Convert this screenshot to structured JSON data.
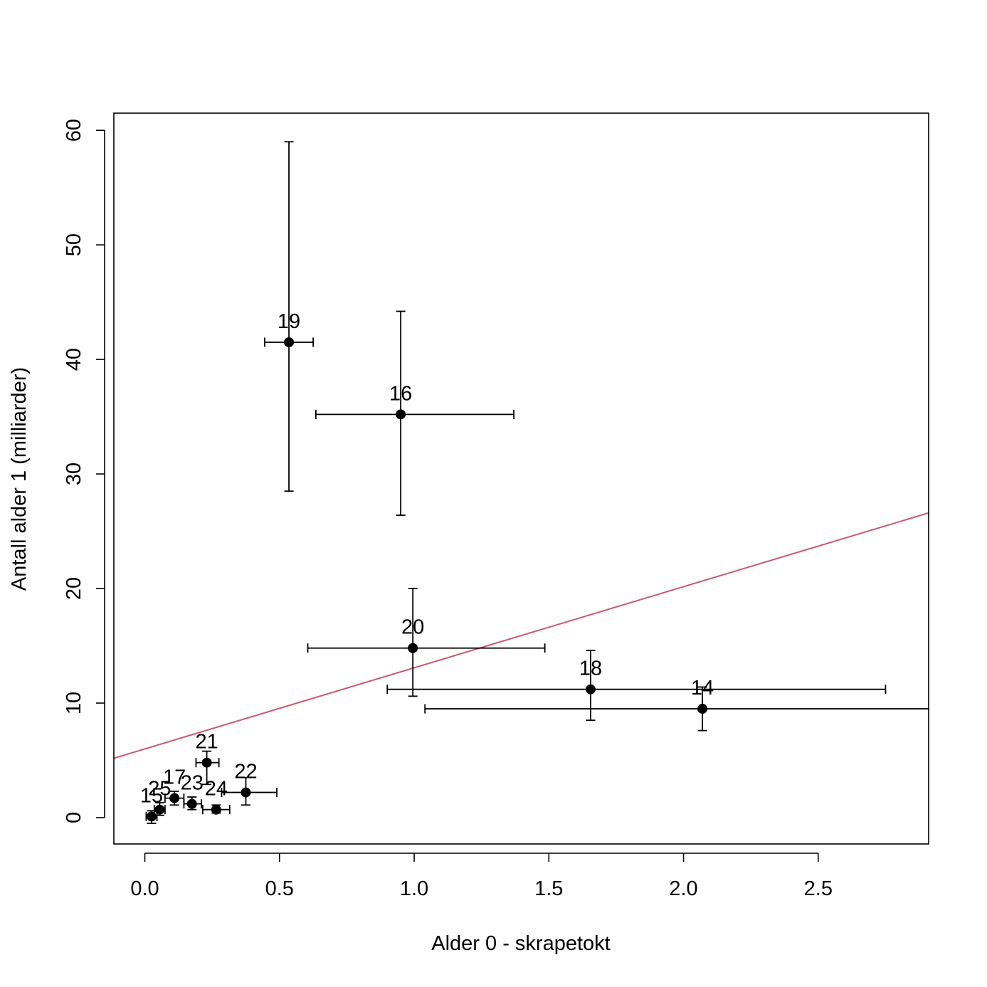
{
  "chart_data": {
    "type": "scatter",
    "title": "",
    "xlabel": "Alder 0 - skrapetokt",
    "ylabel": "Antall alder 1 (milliarder)",
    "xlim": [
      -0.115,
      2.91
    ],
    "ylim": [
      -2.3,
      61.5
    ],
    "x_ticks": [
      "0.0",
      "0.5",
      "1.0",
      "1.5",
      "2.0",
      "2.5"
    ],
    "y_ticks": [
      "0",
      "10",
      "20",
      "30",
      "40",
      "50",
      "60"
    ],
    "grid": false,
    "box": true,
    "points": [
      {
        "label": "14",
        "x": 2.07,
        "y": 9.5,
        "xlo": 1.04,
        "xhi": 3.1,
        "ylo": 7.6,
        "yhi": 11.4
      },
      {
        "label": "15",
        "x": 0.025,
        "y": 0.1,
        "xlo": 0.005,
        "xhi": 0.045,
        "ylo": -0.5,
        "yhi": 0.6
      },
      {
        "label": "16",
        "x": 0.95,
        "y": 35.2,
        "xlo": 0.635,
        "xhi": 1.37,
        "ylo": 26.4,
        "yhi": 44.2
      },
      {
        "label": "17",
        "x": 0.11,
        "y": 1.7,
        "xlo": 0.075,
        "xhi": 0.145,
        "ylo": 1.1,
        "yhi": 2.3
      },
      {
        "label": "18",
        "x": 1.655,
        "y": 11.2,
        "xlo": 0.9,
        "xhi": 2.75,
        "ylo": 8.5,
        "yhi": 14.6
      },
      {
        "label": "19",
        "x": 0.535,
        "y": 41.5,
        "xlo": 0.445,
        "xhi": 0.625,
        "ylo": 28.5,
        "yhi": 59.0
      },
      {
        "label": "20",
        "x": 0.995,
        "y": 14.8,
        "xlo": 0.605,
        "xhi": 1.485,
        "ylo": 10.6,
        "yhi": 20.0
      },
      {
        "label": "21",
        "x": 0.23,
        "y": 4.8,
        "xlo": 0.19,
        "xhi": 0.275,
        "ylo": 2.9,
        "yhi": 5.8
      },
      {
        "label": "22",
        "x": 0.375,
        "y": 2.2,
        "xlo": 0.285,
        "xhi": 0.49,
        "ylo": 1.1,
        "yhi": 3.5
      },
      {
        "label": "23",
        "x": 0.175,
        "y": 1.2,
        "xlo": 0.145,
        "xhi": 0.21,
        "ylo": 0.7,
        "yhi": 1.8
      },
      {
        "label": "24",
        "x": 0.265,
        "y": 0.7,
        "xlo": 0.215,
        "xhi": 0.315,
        "ylo": 0.4,
        "yhi": 1.1
      },
      {
        "label": "25",
        "x": 0.055,
        "y": 0.7,
        "xlo": 0.035,
        "xhi": 0.075,
        "ylo": 0.2,
        "yhi": 1.3
      }
    ],
    "regression_line": {
      "intercept": 6.0,
      "slope": 7.08,
      "color": "#c85a6e"
    },
    "colors": {
      "points": "#000000",
      "error_bars": "#000000",
      "axes": "#000000"
    }
  }
}
